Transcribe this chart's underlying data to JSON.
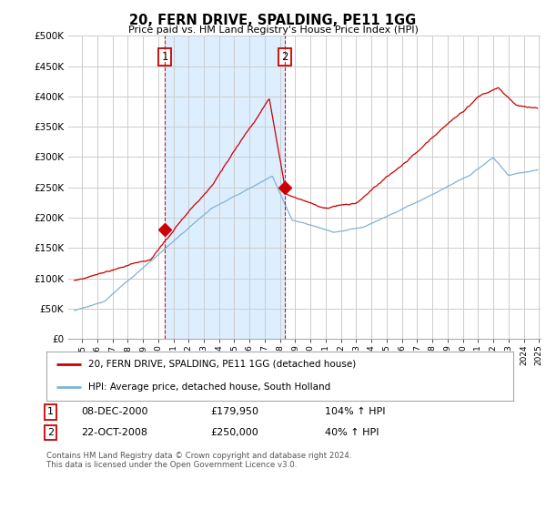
{
  "title": "20, FERN DRIVE, SPALDING, PE11 1GG",
  "subtitle": "Price paid vs. HM Land Registry's House Price Index (HPI)",
  "ylabel_ticks": [
    "£0",
    "£50K",
    "£100K",
    "£150K",
    "£200K",
    "£250K",
    "£300K",
    "£350K",
    "£400K",
    "£450K",
    "£500K"
  ],
  "ytick_values": [
    0,
    50000,
    100000,
    150000,
    200000,
    250000,
    300000,
    350000,
    400000,
    450000,
    500000
  ],
  "ylim": [
    0,
    500000
  ],
  "xlim_start": 1994.6,
  "xlim_end": 2025.6,
  "background_color": "#ffffff",
  "plot_bg_color": "#ffffff",
  "grid_color": "#cccccc",
  "hpi_color": "#7fb3d3",
  "price_color": "#cc0000",
  "shade_color": "#ddeeff",
  "purchase1_x": 2000.93,
  "purchase1_y": 179950,
  "purchase1_label": "1",
  "purchase2_x": 2008.81,
  "purchase2_y": 250000,
  "purchase2_label": "2",
  "legend_line1": "20, FERN DRIVE, SPALDING, PE11 1GG (detached house)",
  "legend_line2": "HPI: Average price, detached house, South Holland",
  "table_row1_num": "1",
  "table_row1_date": "08-DEC-2000",
  "table_row1_price": "£179,950",
  "table_row1_hpi": "104% ↑ HPI",
  "table_row2_num": "2",
  "table_row2_date": "22-OCT-2008",
  "table_row2_price": "£250,000",
  "table_row2_hpi": "40% ↑ HPI",
  "footer": "Contains HM Land Registry data © Crown copyright and database right 2024.\nThis data is licensed under the Open Government Licence v3.0.",
  "xtick_years": [
    1995,
    1996,
    1997,
    1998,
    1999,
    2000,
    2001,
    2002,
    2003,
    2004,
    2005,
    2006,
    2007,
    2008,
    2009,
    2010,
    2011,
    2012,
    2013,
    2014,
    2015,
    2016,
    2017,
    2018,
    2019,
    2020,
    2021,
    2022,
    2023,
    2024,
    2025
  ]
}
